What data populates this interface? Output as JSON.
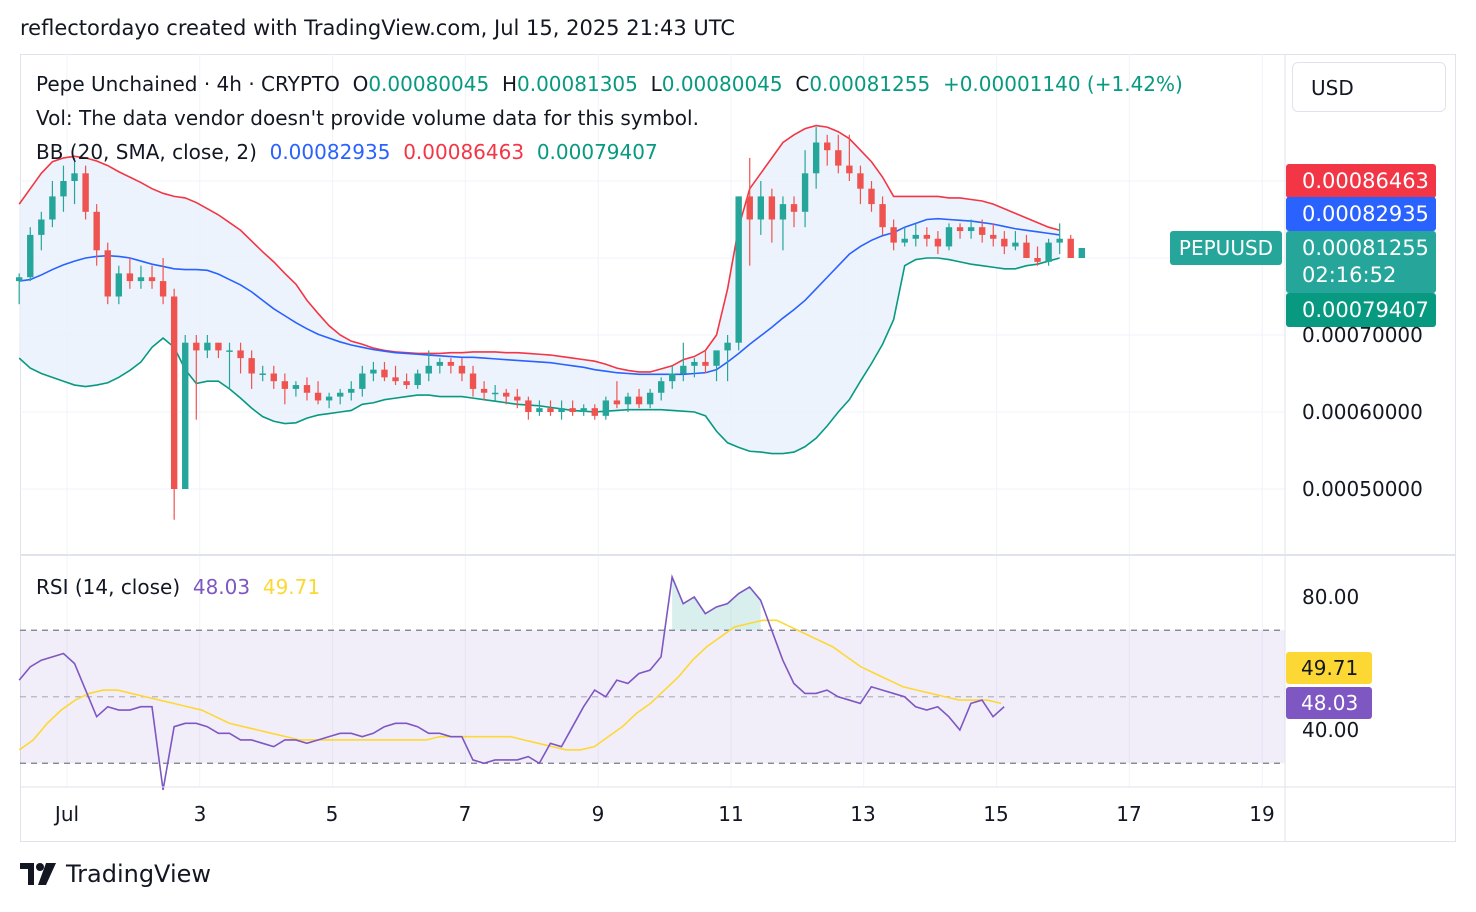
{
  "credit": "reflectordayo created with TradingView.com, Jul 15, 2025 21:43 UTC",
  "legend": {
    "symbol": "Pepe Unchained · 4h · CRYPTO",
    "o_label": "O",
    "o_value": "0.00080045",
    "h_label": "H",
    "h_value": "0.00081305",
    "l_label": "L",
    "l_value": "0.00080045",
    "c_label": "C",
    "c_value": "0.00081255",
    "change": "+0.00001140 (+1.42%)",
    "vol": "Vol: The data vendor doesn't provide volume data for this symbol.",
    "bb_label": "BB (20, SMA, close, 2)",
    "bb_basis": "0.00082935",
    "bb_upper": "0.00086463",
    "bb_lower": "0.00079407",
    "rsi_label": "RSI (14, close)",
    "rsi_value": "48.03",
    "rsi_ma": "49.71"
  },
  "currency": "USD",
  "symbol_tag": "PEPUUSD",
  "price_tags": {
    "upper": "0.00086463",
    "basis": "0.00082935",
    "last": "0.00081255",
    "countdown": "02:16:52",
    "lower": "0.00079407"
  },
  "y_axis_labels": [
    "0.00070000",
    "0.00060000",
    "0.00050000"
  ],
  "rsi_axis_labels": [
    "80.00",
    "40.00"
  ],
  "rsi_tags": {
    "ma": "49.71",
    "value": "48.03"
  },
  "x_axis_labels": [
    "Jul",
    "3",
    "5",
    "7",
    "9",
    "11",
    "13",
    "15",
    "17",
    "19"
  ],
  "brand": "TradingView",
  "colors": {
    "up": "#26a69a",
    "down": "#ef5350",
    "bb_basis": "#2962ff",
    "bb_upper": "#f23645",
    "bb_lower": "#089981",
    "bb_fill": "#e8f0fb",
    "rsi": "#7e57c2",
    "rsi_ma": "#fdd835"
  },
  "chart_data": {
    "type": "candlestick",
    "title": "Pepe Unchained · 4h · CRYPTO",
    "interval": "4h",
    "x_start_day": 0.0,
    "x_step_days": 0.1667,
    "price_range": [
      0.00044,
      0.00097
    ],
    "candles": [
      [
        0.00077,
        0.00078,
        0.00074,
        0.000775
      ],
      [
        0.000775,
        0.00084,
        0.00077,
        0.00083
      ],
      [
        0.00083,
        0.00086,
        0.00081,
        0.00085
      ],
      [
        0.00085,
        0.0009,
        0.00084,
        0.00088
      ],
      [
        0.00088,
        0.00092,
        0.00086,
        0.0009
      ],
      [
        0.0009,
        0.00093,
        0.00087,
        0.00091
      ],
      [
        0.00091,
        0.00092,
        0.00085,
        0.00086
      ],
      [
        0.00086,
        0.00087,
        0.00079,
        0.00081
      ],
      [
        0.00081,
        0.00082,
        0.00074,
        0.00075
      ],
      [
        0.00075,
        0.00079,
        0.00074,
        0.00078
      ],
      [
        0.00078,
        0.0008,
        0.00076,
        0.00077
      ],
      [
        0.00077,
        0.00079,
        0.00076,
        0.000775
      ],
      [
        0.000775,
        0.00079,
        0.00076,
        0.00077
      ],
      [
        0.00077,
        0.0008,
        0.00074,
        0.00075
      ],
      [
        0.00075,
        0.00076,
        0.00046,
        0.0005
      ],
      [
        0.0005,
        0.0007,
        0.0005,
        0.00069
      ],
      [
        0.00069,
        0.0007,
        0.00059,
        0.00068
      ],
      [
        0.00068,
        0.0007,
        0.00067,
        0.00069
      ],
      [
        0.00069,
        0.00069,
        0.00067,
        0.00068
      ],
      [
        0.00068,
        0.00069,
        0.00063,
        0.00068
      ],
      [
        0.00068,
        0.00069,
        0.00065,
        0.00067
      ],
      [
        0.00067,
        0.00068,
        0.00063,
        0.00065
      ],
      [
        0.00065,
        0.00066,
        0.00064,
        0.00065
      ],
      [
        0.00065,
        0.00066,
        0.00063,
        0.00064
      ],
      [
        0.00064,
        0.00065,
        0.00061,
        0.00063
      ],
      [
        0.00063,
        0.00064,
        0.00062,
        0.000635
      ],
      [
        0.000635,
        0.000645,
        0.000615,
        0.000625
      ],
      [
        0.000625,
        0.00064,
        0.00061,
        0.000615
      ],
      [
        0.000615,
        0.000625,
        0.000605,
        0.00062
      ],
      [
        0.00062,
        0.00063,
        0.00061,
        0.000625
      ],
      [
        0.000625,
        0.00064,
        0.000615,
        0.00063
      ],
      [
        0.00063,
        0.00066,
        0.00062,
        0.00065
      ],
      [
        0.00065,
        0.000665,
        0.00064,
        0.000655
      ],
      [
        0.000655,
        0.000665,
        0.00064,
        0.000645
      ],
      [
        0.000645,
        0.00066,
        0.000635,
        0.00064
      ],
      [
        0.00064,
        0.00065,
        0.00063,
        0.000635
      ],
      [
        0.000635,
        0.000655,
        0.00063,
        0.00065
      ],
      [
        0.00065,
        0.00068,
        0.00064,
        0.00066
      ],
      [
        0.00066,
        0.00067,
        0.00065,
        0.000665
      ],
      [
        0.000665,
        0.00067,
        0.00065,
        0.00066
      ],
      [
        0.00066,
        0.00067,
        0.00064,
        0.00065
      ],
      [
        0.00065,
        0.00066,
        0.00062,
        0.00063
      ],
      [
        0.00063,
        0.00064,
        0.000615,
        0.000625
      ],
      [
        0.000625,
        0.000635,
        0.000615,
        0.000625
      ],
      [
        0.000625,
        0.00063,
        0.00061,
        0.00062
      ],
      [
        0.00062,
        0.00063,
        0.000605,
        0.000615
      ],
      [
        0.000615,
        0.00062,
        0.00059,
        0.0006
      ],
      [
        0.0006,
        0.000615,
        0.000595,
        0.000605
      ],
      [
        0.000605,
        0.000615,
        0.000595,
        0.0006
      ],
      [
        0.0006,
        0.000615,
        0.00059,
        0.000605
      ],
      [
        0.000605,
        0.000615,
        0.000595,
        0.0006
      ],
      [
        0.0006,
        0.00061,
        0.000595,
        0.000605
      ],
      [
        0.000605,
        0.00061,
        0.00059,
        0.000595
      ],
      [
        0.000595,
        0.00062,
        0.00059,
        0.000615
      ],
      [
        0.000615,
        0.00064,
        0.000605,
        0.00061
      ],
      [
        0.00061,
        0.000625,
        0.0006,
        0.00062
      ],
      [
        0.00062,
        0.00063,
        0.000605,
        0.00061
      ],
      [
        0.00061,
        0.00063,
        0.000605,
        0.000625
      ],
      [
        0.000625,
        0.000645,
        0.000615,
        0.00064
      ],
      [
        0.00064,
        0.00066,
        0.00063,
        0.00065
      ],
      [
        0.00065,
        0.00069,
        0.00064,
        0.00066
      ],
      [
        0.00066,
        0.00067,
        0.000645,
        0.000665
      ],
      [
        0.000665,
        0.00068,
        0.00065,
        0.00066
      ],
      [
        0.00066,
        0.00068,
        0.00064,
        0.00068
      ],
      [
        0.00068,
        0.0007,
        0.00064,
        0.00069
      ],
      [
        0.00069,
        0.00088,
        0.00068,
        0.00088
      ],
      [
        0.00088,
        0.00093,
        0.00079,
        0.00085
      ],
      [
        0.00085,
        0.0009,
        0.00083,
        0.00088
      ],
      [
        0.00088,
        0.00089,
        0.00082,
        0.00085
      ],
      [
        0.00085,
        0.00088,
        0.00081,
        0.00087
      ],
      [
        0.00087,
        0.00088,
        0.00084,
        0.00086
      ],
      [
        0.00086,
        0.00094,
        0.00084,
        0.00091
      ],
      [
        0.00091,
        0.00097,
        0.00089,
        0.00095
      ],
      [
        0.00095,
        0.00096,
        0.00092,
        0.00094
      ],
      [
        0.00094,
        0.00096,
        0.00091,
        0.00092
      ],
      [
        0.00092,
        0.00096,
        0.0009,
        0.00091
      ],
      [
        0.00091,
        0.00092,
        0.00087,
        0.00089
      ],
      [
        0.00089,
        0.0009,
        0.00086,
        0.00087
      ],
      [
        0.00087,
        0.00088,
        0.00083,
        0.00084
      ],
      [
        0.00084,
        0.00085,
        0.00081,
        0.00082
      ],
      [
        0.00082,
        0.00084,
        0.000815,
        0.000825
      ],
      [
        0.000825,
        0.000845,
        0.000815,
        0.00083
      ],
      [
        0.00083,
        0.00084,
        0.000815,
        0.000825
      ],
      [
        0.000825,
        0.000835,
        0.000805,
        0.000815
      ],
      [
        0.000815,
        0.000845,
        0.00081,
        0.00084
      ],
      [
        0.00084,
        0.000845,
        0.000825,
        0.000835
      ],
      [
        0.000835,
        0.00085,
        0.000825,
        0.00084
      ],
      [
        0.00084,
        0.00085,
        0.00082,
        0.00083
      ],
      [
        0.00083,
        0.000845,
        0.000815,
        0.000825
      ],
      [
        0.000825,
        0.000835,
        0.000805,
        0.000815
      ],
      [
        0.000815,
        0.000835,
        0.00081,
        0.00082
      ],
      [
        0.00082,
        0.00083,
        0.0008,
        0.0008
      ],
      [
        0.0008,
        0.000815,
        0.00079,
        0.000795
      ],
      [
        0.000795,
        0.000825,
        0.00079,
        0.00082
      ],
      [
        0.00082,
        0.000845,
        0.000805,
        0.000825
      ],
      [
        0.000825,
        0.00083,
        0.0008,
        0.0008
      ],
      [
        0.0008,
        0.000813,
        0.0008,
        0.000813
      ]
    ],
    "bb_upper": [
      0.00087,
      0.00089,
      0.00091,
      0.000925,
      0.00093,
      0.000932,
      0.00093,
      0.000926,
      0.00092,
      0.000912,
      0.000905,
      0.000898,
      0.00089,
      0.000884,
      0.00088,
      0.000878,
      0.000872,
      0.000864,
      0.000856,
      0.000846,
      0.000836,
      0.000822,
      0.000808,
      0.000795,
      0.00078,
      0.000766,
      0.000745,
      0.000728,
      0.000712,
      0.0007,
      0.000692,
      0.000688,
      0.000683,
      0.00068,
      0.000678,
      0.000677,
      0.000676,
      0.000676,
      0.000676,
      0.000677,
      0.000677,
      0.000678,
      0.000678,
      0.000678,
      0.000677,
      0.000677,
      0.000676,
      0.000675,
      0.000674,
      0.000672,
      0.00067,
      0.000668,
      0.000666,
      0.000662,
      0.000657,
      0.000654,
      0.000652,
      0.000652,
      0.000656,
      0.00066,
      0.000668,
      0.000672,
      0.00068,
      0.0007,
      0.00076,
      0.00084,
      0.00089,
      0.00091,
      0.00093,
      0.00095,
      0.00096,
      0.000968,
      0.000972,
      0.00097,
      0.000964,
      0.000955,
      0.00094,
      0.000925,
      0.000905,
      0.00088,
      0.00088,
      0.00088,
      0.00088,
      0.00088,
      0.000878,
      0.000878,
      0.000876,
      0.000874,
      0.00087,
      0.000864,
      0.000858,
      0.000852,
      0.000846,
      0.00084,
      0.000836
    ],
    "bb_basis": [
      0.00077,
      0.000772,
      0.000778,
      0.000785,
      0.000791,
      0.000796,
      0.0008,
      0.000802,
      0.000803,
      0.000802,
      0.0008,
      0.000796,
      0.000792,
      0.000789,
      0.000786,
      0.000785,
      0.000785,
      0.000784,
      0.000779,
      0.000772,
      0.000765,
      0.000756,
      0.000745,
      0.000734,
      0.000725,
      0.000716,
      0.000708,
      0.000701,
      0.000696,
      0.000691,
      0.000687,
      0.000684,
      0.000681,
      0.000679,
      0.000677,
      0.000676,
      0.000675,
      0.000674,
      0.000673,
      0.000672,
      0.000671,
      0.000671,
      0.00067,
      0.000669,
      0.000668,
      0.000667,
      0.000666,
      0.000665,
      0.000664,
      0.000662,
      0.00066,
      0.000658,
      0.000655,
      0.000653,
      0.000651,
      0.00065,
      0.000649,
      0.000649,
      0.000649,
      0.000649,
      0.000649,
      0.00065,
      0.000651,
      0.000655,
      0.000665,
      0.000676,
      0.000688,
      0.000699,
      0.00071,
      0.000722,
      0.000733,
      0.000745,
      0.00076,
      0.000775,
      0.00079,
      0.000805,
      0.000815,
      0.000823,
      0.000829,
      0.000833,
      0.00084,
      0.000845,
      0.00085,
      0.000851,
      0.00085,
      0.000849,
      0.000848,
      0.000846,
      0.000844,
      0.000841,
      0.000838,
      0.000836,
      0.000834,
      0.000832,
      0.00083
    ],
    "bb_lower": [
      0.00067,
      0.000657,
      0.00065,
      0.000645,
      0.00064,
      0.000635,
      0.000633,
      0.000635,
      0.000638,
      0.000645,
      0.000654,
      0.000665,
      0.000684,
      0.000696,
      0.000684,
      0.000655,
      0.000637,
      0.00064,
      0.00064,
      0.00063,
      0.000618,
      0.000605,
      0.000594,
      0.000588,
      0.000585,
      0.000586,
      0.000592,
      0.000596,
      0.000598,
      0.0006,
      0.000602,
      0.00061,
      0.000612,
      0.000616,
      0.000618,
      0.00062,
      0.000622,
      0.000622,
      0.00062,
      0.00062,
      0.00062,
      0.000618,
      0.000616,
      0.000614,
      0.000612,
      0.00061,
      0.000609,
      0.000608,
      0.000606,
      0.000604,
      0.000602,
      0.000601,
      0.0006,
      0.000601,
      0.000602,
      0.000603,
      0.000603,
      0.000603,
      0.000603,
      0.000602,
      0.000601,
      0.0006,
      0.000595,
      0.000575,
      0.00056,
      0.000554,
      0.000549,
      0.000548,
      0.000546,
      0.000546,
      0.000548,
      0.000555,
      0.000566,
      0.000582,
      0.0006,
      0.000616,
      0.00064,
      0.000663,
      0.000688,
      0.00072,
      0.00079,
      0.000798,
      0.0008,
      0.0008,
      0.000798,
      0.000795,
      0.000792,
      0.00079,
      0.000788,
      0.000786,
      0.000786,
      0.00079,
      0.000792,
      0.000796,
      0.0008
    ],
    "rsi_range": [
      20,
      100
    ],
    "rsi_bands": [
      70,
      30
    ],
    "rsi_mid": 50,
    "rsi": [
      55,
      59,
      61,
      62,
      63,
      60,
      52,
      44,
      47,
      46,
      46,
      47,
      47,
      22,
      41,
      42,
      42,
      41,
      39,
      39,
      37,
      37,
      36,
      35,
      37,
      37,
      36,
      37,
      38,
      39,
      39,
      38,
      39,
      41,
      42,
      42,
      41,
      39,
      39,
      38,
      38,
      31,
      30,
      31,
      31,
      31,
      32,
      30,
      36,
      35,
      41,
      47,
      52,
      50,
      55,
      54,
      57,
      58,
      62,
      86,
      78,
      80,
      75,
      77,
      78,
      81,
      83,
      79,
      70,
      61,
      54,
      51,
      51,
      52,
      50,
      49,
      48,
      53,
      52,
      51,
      50,
      47,
      46,
      47,
      44,
      40,
      48,
      49,
      44,
      47
    ],
    "rsi_ma": [
      34,
      37,
      42,
      46,
      49,
      51,
      52,
      52,
      51,
      50,
      49,
      48,
      47,
      46,
      44,
      42,
      41,
      40,
      39,
      38,
      37,
      37,
      37,
      37,
      37,
      37,
      37,
      37,
      37,
      37,
      38,
      38,
      38,
      38,
      38,
      38,
      37,
      36,
      35,
      34,
      34,
      35,
      38,
      41,
      45,
      48,
      52,
      56,
      61,
      65,
      68,
      71,
      72,
      73,
      73,
      71,
      69,
      67,
      65,
      62,
      59,
      57,
      55,
      53,
      52,
      51,
      50,
      49,
      49,
      49,
      48
    ],
    "rsi_ma_start_index": 0
  }
}
